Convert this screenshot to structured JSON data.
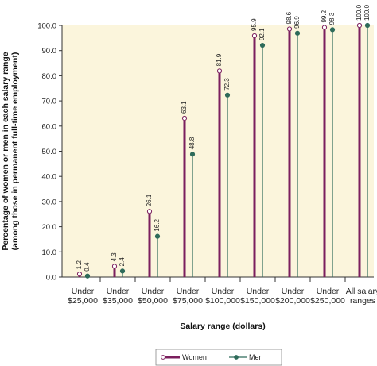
{
  "chart_data": {
    "type": "lollipop",
    "categories": [
      [
        "Under",
        "$25,000"
      ],
      [
        "Under",
        "$35,000"
      ],
      [
        "Under",
        "$50,000"
      ],
      [
        "Under",
        "$75,000"
      ],
      [
        "Under",
        "$100,000"
      ],
      [
        "Under",
        "$150,000"
      ],
      [
        "Under",
        "$200,000"
      ],
      [
        "Under",
        "$250,000"
      ],
      [
        "All salary",
        "ranges"
      ]
    ],
    "series": [
      {
        "name": "Women",
        "color": "#7b1f5e",
        "values": [
          1.2,
          4.3,
          26.1,
          63.1,
          81.9,
          95.9,
          98.6,
          99.2,
          100.0
        ],
        "labels": [
          "1.2",
          "4.3",
          "26.1",
          "63.1",
          "81.9",
          "95.9",
          "98.6",
          "99.2",
          "100.0"
        ]
      },
      {
        "name": "Men",
        "color": "#2e6b5a",
        "values": [
          0.4,
          2.4,
          16.2,
          48.8,
          72.3,
          92.1,
          96.9,
          98.3,
          100.0
        ],
        "labels": [
          "0.4",
          "2.4",
          "16.2",
          "48.8",
          "72.3",
          "92.1",
          "96.9",
          "98.3",
          "100.0"
        ]
      }
    ],
    "xlabel": "Salary range (dollars)",
    "ylabel": [
      "Percentage of women or men in each salary range",
      "(among those in permanent full-time employment)"
    ],
    "ylim": [
      0,
      100
    ],
    "yticks": [
      "0.0",
      "10.0",
      "20.0",
      "30.0",
      "40.0",
      "50.0",
      "60.0",
      "70.0",
      "80.0",
      "90.0",
      "100.0"
    ],
    "plot_background": "#fbf5dc",
    "grid": false,
    "legend": {
      "position": "bottom-center",
      "entries": [
        "Women",
        "Men"
      ]
    }
  }
}
